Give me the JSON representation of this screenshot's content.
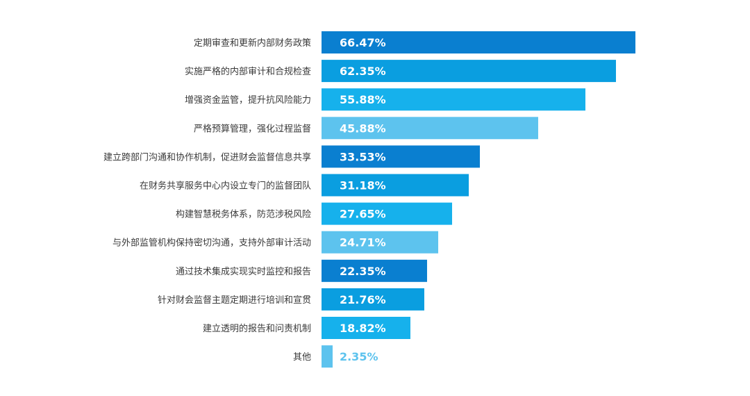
{
  "chart_data": {
    "type": "bar",
    "orientation": "horizontal",
    "title": "",
    "xlabel": "",
    "ylabel": "",
    "unit": "%",
    "xlim": [
      0,
      70
    ],
    "grid": false,
    "legend": "none",
    "categories": [
      "定期审查和更新内部财务政策",
      "实施严格的内部审计和合规检查",
      "增强资金监管，提升抗风险能力",
      "严格预算管理，强化过程监督",
      "建立跨部门沟通和协作机制，促进财会监督信息共享",
      "在财务共享服务中心内设立专门的监督团队",
      "构建智慧税务体系，防范涉税风险",
      "与外部监管机构保持密切沟通，支持外部审计活动",
      "通过技术集成实现实时监控和报告",
      "针对财会监督主题定期进行培训和宣贯",
      "建立透明的报告和问责机制",
      "其他"
    ],
    "values": [
      66.47,
      62.35,
      55.88,
      45.88,
      33.53,
      31.18,
      27.65,
      24.71,
      22.35,
      21.76,
      18.82,
      2.35
    ],
    "labels": [
      "66.47%",
      "62.35%",
      "55.88%",
      "45.88%",
      "33.53%",
      "31.18%",
      "27.65%",
      "24.71%",
      "22.35%",
      "21.76%",
      "18.82%",
      "2.35%"
    ],
    "colors": [
      "#0a7fd0",
      "#0a9ee0",
      "#16b1ec",
      "#5dc3ee",
      "#0a7fd0",
      "#0a9ee0",
      "#16b1ec",
      "#5dc3ee",
      "#0a7fd0",
      "#0a9ee0",
      "#16b1ec",
      "#5dc3ee"
    ],
    "value_label_color_inside": "#ffffff",
    "value_label_color_outside": "#5dc3ee"
  }
}
